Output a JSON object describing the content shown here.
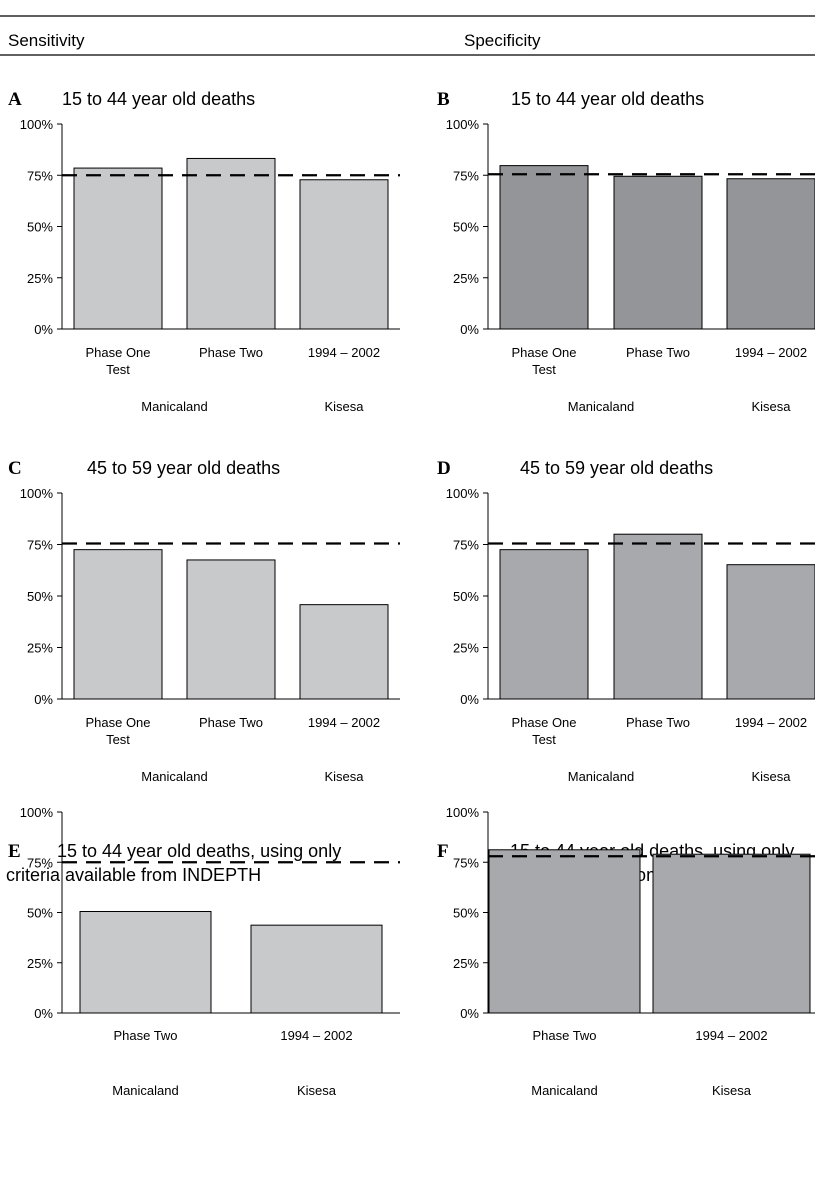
{
  "header": {
    "left_label": "Sensitivity",
    "right_label": "Specificity"
  },
  "chart_data": [
    {
      "panel": "A",
      "type": "bar",
      "title": "15 to 44 year old deaths",
      "categories": [
        "Phase One Test",
        "Phase Two",
        "1994 – 2002"
      ],
      "groups": [
        "Manicaland",
        "",
        "Kisesa"
      ],
      "values": [
        0.785,
        0.832,
        0.728
      ],
      "reference_line": 0.75,
      "ylim": [
        0,
        1
      ],
      "yticks": [
        "0%",
        "25%",
        "50%",
        "75%",
        "100%"
      ],
      "bar_color": "#c8c9cb"
    },
    {
      "panel": "B",
      "type": "bar",
      "title": "15 to 44 year old deaths",
      "categories": [
        "Phase One Test",
        "Phase Two",
        "1994 – 2002"
      ],
      "groups": [
        "Manicaland",
        "",
        "Kisesa"
      ],
      "values": [
        0.797,
        0.745,
        0.733
      ],
      "reference_line": 0.755,
      "ylim": [
        0,
        1
      ],
      "yticks": [
        "0%",
        "25%",
        "50%",
        "75%",
        "100%"
      ],
      "bar_color": "#939598"
    },
    {
      "panel": "C",
      "type": "bar",
      "title": "45 to 59 year old deaths",
      "categories": [
        "Phase One Test",
        "Phase Two",
        "1994 – 2002"
      ],
      "groups": [
        "Manicaland",
        "",
        "Kisesa"
      ],
      "values": [
        0.725,
        0.675,
        0.458
      ],
      "reference_line": 0.755,
      "ylim": [
        0,
        1
      ],
      "yticks": [
        "0%",
        "25%",
        "50%",
        "75%",
        "100%"
      ],
      "bar_color": "#c8c9cb"
    },
    {
      "panel": "D",
      "type": "bar",
      "title": "45 to 59 year old deaths",
      "categories": [
        "Phase One Test",
        "Phase Two",
        "1994 – 2002"
      ],
      "groups": [
        "Manicaland",
        "",
        "Kisesa"
      ],
      "values": [
        0.725,
        0.8,
        0.652
      ],
      "reference_line": 0.755,
      "ylim": [
        0,
        1
      ],
      "yticks": [
        "0%",
        "25%",
        "50%",
        "75%",
        "100%"
      ],
      "bar_color": "#a7a9ac"
    },
    {
      "panel": "E",
      "type": "bar",
      "title_lines": [
        "15 to 44 year old deaths, using only",
        "criteria available from INDEPTH"
      ],
      "categories": [
        "Phase Two",
        "1994 – 2002"
      ],
      "groups": [
        "Manicaland",
        "Kisesa"
      ],
      "values": [
        0.505,
        0.437
      ],
      "reference_line": 0.75,
      "ylim": [
        0,
        1
      ],
      "yticks": [
        "0%",
        "25%",
        "50%",
        "75%",
        "100%"
      ],
      "bar_color": "#c8c9cb"
    },
    {
      "panel": "F",
      "type": "bar",
      "title_lines": [
        "15 to 44 year old deaths, using only",
        "criteria available from INDEPTH"
      ],
      "categories": [
        "Phase Two",
        "1994 – 2002"
      ],
      "groups": [
        "Manicaland",
        "Kisesa"
      ],
      "values": [
        0.812,
        0.79
      ],
      "reference_line": 0.78,
      "ylim": [
        0,
        1
      ],
      "yticks": [
        "0%",
        "25%",
        "50%",
        "75%",
        "100%"
      ],
      "bar_color": "#a7a9ac"
    }
  ]
}
